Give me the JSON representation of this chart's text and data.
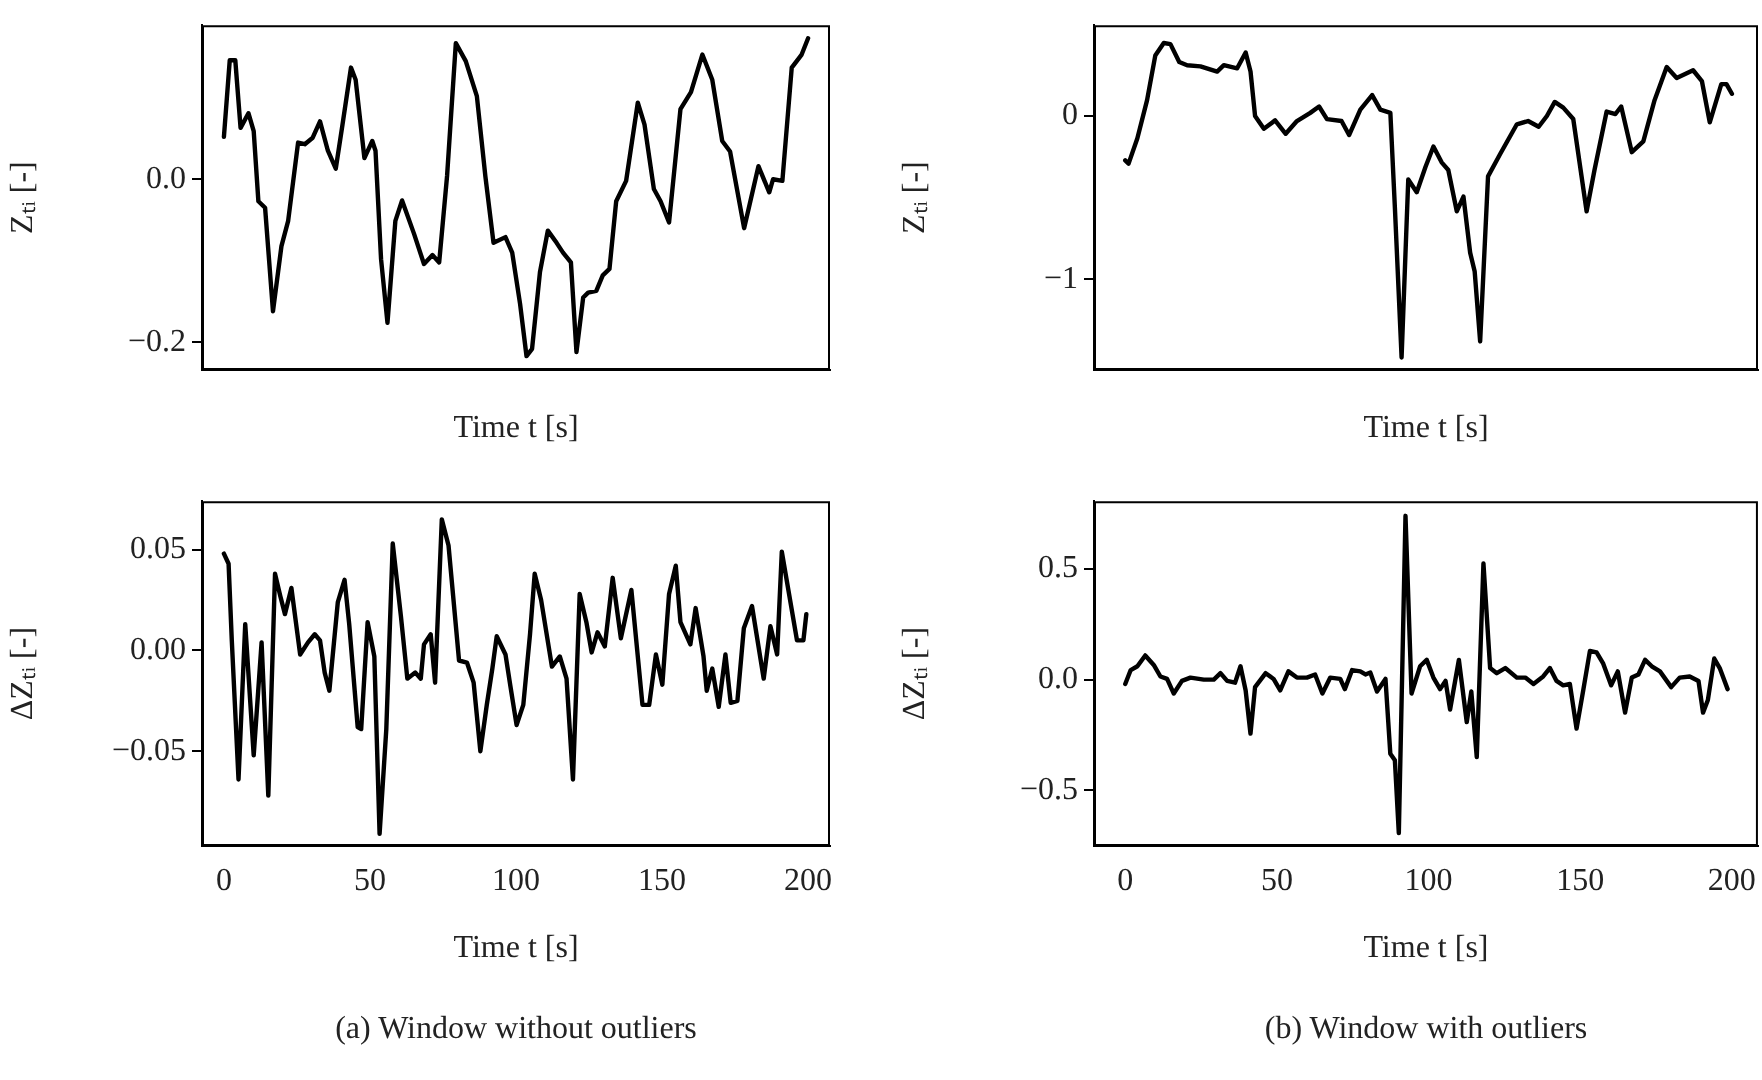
{
  "chart_data": [
    {
      "type": "line",
      "ylabel": "Zₜᵢ [-]",
      "xlabel": "Time t [s]",
      "tick_labels": "y",
      "grid": false,
      "legend": false,
      "marker": "none",
      "line_style": "solid",
      "xlim": [
        -7.5,
        207.5
      ],
      "xticks": [
        0,
        50,
        100,
        150,
        200
      ],
      "ylim": [
        -0.234,
        0.189
      ],
      "yticks": [
        {
          "value": -0.2,
          "label": "−0.2"
        },
        {
          "value": 0,
          "label": "0.0"
        }
      ],
      "series": [
        {
          "color": "#000000",
          "x": [
            0,
            2,
            3.9,
            5.7,
            8.4,
            10.2,
            11.8,
            14.1,
            16.8,
            19.7,
            22,
            25.4,
            27.7,
            30.4,
            32.9,
            35.6,
            38.3,
            40.6,
            43.5,
            45.1,
            48.1,
            50.8,
            51.9,
            53.8,
            56,
            58.7,
            61,
            65.1,
            68.5,
            71.4,
            73.7,
            76.4,
            79.4,
            82.8,
            86.6,
            89.5,
            92.3,
            96.4,
            98.7,
            101.4,
            103.6,
            105.5,
            108.2,
            110.9,
            113.9,
            116.1,
            118.8,
            120.7,
            123,
            124.7,
            127.5,
            129.7,
            132,
            134.3,
            137.7,
            141.7,
            144,
            147.2,
            149.5,
            152.4,
            156.3,
            159.9,
            163.8,
            167.2,
            170.6,
            173.3,
            178.1,
            183,
            186.7,
            188,
            191.2,
            194.4,
            197.8,
            200
          ],
          "values": [
            0.052,
            0.146,
            0.146,
            0.063,
            0.081,
            0.059,
            -0.027,
            -0.035,
            -0.162,
            -0.082,
            -0.051,
            0.045,
            0.043,
            0.051,
            0.071,
            0.035,
            0.013,
            0.067,
            0.137,
            0.122,
            0.026,
            0.047,
            0.035,
            -0.098,
            -0.176,
            -0.051,
            -0.026,
            -0.067,
            -0.104,
            -0.093,
            -0.102,
            0.004,
            0.167,
            0.145,
            0.102,
            0.004,
            -0.078,
            -0.071,
            -0.09,
            -0.153,
            -0.217,
            -0.208,
            -0.114,
            -0.063,
            -0.078,
            -0.09,
            -0.102,
            -0.212,
            -0.145,
            -0.139,
            -0.137,
            -0.118,
            -0.11,
            -0.027,
            -0.002,
            0.094,
            0.067,
            -0.012,
            -0.027,
            -0.053,
            0.086,
            0.107,
            0.153,
            0.122,
            0.047,
            0.034,
            -0.06,
            0.016,
            -0.016,
            0,
            -0.002,
            0.137,
            0.153,
            0.173
          ]
        }
      ]
    },
    {
      "type": "line",
      "ylabel": "Zₜᵢ [-]",
      "xlabel": "Time t [s]",
      "tick_labels": "y",
      "grid": false,
      "legend": false,
      "marker": "none",
      "line_style": "solid",
      "xlim": [
        -10.3,
        208.6
      ],
      "xticks": [
        0,
        50,
        100,
        150,
        200
      ],
      "ylim": [
        -1.556,
        0.556
      ],
      "yticks": [
        {
          "value": -1,
          "label": "−1"
        },
        0
      ],
      "series": [
        {
          "color": "#000000",
          "x": [
            0,
            1.1,
            4,
            7.2,
            9.9,
            12.7,
            14.9,
            17.8,
            20.4,
            24.8,
            30.3,
            32.5,
            36.9,
            39.7,
            41.3,
            42.8,
            45.7,
            49.4,
            52.9,
            56.6,
            61,
            63.9,
            66.5,
            71.3,
            73.8,
            77.5,
            81.4,
            84.1,
            87.4,
            88.9,
            91.1,
            93.3,
            96.1,
            99,
            101.6,
            104.3,
            106.5,
            109.3,
            111.5,
            113.7,
            115.2,
            117,
            119.6,
            123.6,
            129.1,
            132.8,
            136.3,
            139,
            141.6,
            144.4,
            147.7,
            152.1,
            154.7,
            158.7,
            161.6,
            163.5,
            167,
            170.8,
            174.5,
            178.5,
            181.8,
            187.2,
            190.1,
            192.7,
            196.5,
            198.2,
            200
          ],
          "values": [
            -0.272,
            -0.292,
            -0.136,
            0.097,
            0.37,
            0.447,
            0.44,
            0.331,
            0.311,
            0.304,
            0.272,
            0.311,
            0.292,
            0.389,
            0.272,
            0,
            -0.078,
            -0.027,
            -0.109,
            -0.031,
            0.019,
            0.058,
            -0.019,
            -0.031,
            -0.117,
            0.039,
            0.128,
            0.039,
            0.019,
            -0.564,
            -1.479,
            -0.389,
            -0.467,
            -0.311,
            -0.187,
            -0.284,
            -0.331,
            -0.584,
            -0.494,
            -0.837,
            -0.953,
            -1.381,
            -0.37,
            -0.233,
            -0.051,
            -0.031,
            -0.066,
            0,
            0.086,
            0.051,
            -0.019,
            -0.584,
            -0.331,
            0.027,
            0.012,
            0.058,
            -0.222,
            -0.156,
            0.097,
            0.3,
            0.233,
            0.28,
            0.214,
            -0.039,
            0.195,
            0.195,
            0.136
          ]
        }
      ]
    },
    {
      "type": "line",
      "ylabel": "ΔZₜᵢ [-]",
      "xlabel": "Time t [s]",
      "grid": false,
      "legend": false,
      "marker": "none",
      "line_style": "solid",
      "xlim": [
        -7.5,
        207.5
      ],
      "xticks": [
        0,
        50,
        100,
        150,
        200
      ],
      "ylim": [
        -0.097,
        0.074
      ],
      "yticks": [
        {
          "value": -0.05,
          "label": "−0.05"
        },
        {
          "value": 0,
          "label": "0.00"
        },
        0.05
      ],
      "annotations": [
        "(a) Window without outliers"
      ],
      "series": [
        {
          "color": "#000000",
          "x": [
            0,
            1.6,
            2.7,
            5,
            7.3,
            10.2,
            12.9,
            15.2,
            17.5,
            19.3,
            20.9,
            23.1,
            26.1,
            28.8,
            31.1,
            32.9,
            34.5,
            36.1,
            39,
            41.3,
            42.9,
            45.8,
            47,
            49.2,
            51.5,
            53.3,
            55.6,
            57.8,
            60.6,
            62.8,
            65.5,
            67.4,
            68.5,
            70.8,
            72.3,
            74.6,
            76.9,
            80.5,
            83.2,
            85.5,
            87.8,
            90,
            91.9,
            93.4,
            96.4,
            98,
            100.2,
            102.5,
            104.8,
            106.4,
            108.6,
            112.3,
            115,
            117.3,
            119.5,
            121.8,
            124.1,
            125.9,
            127.9,
            130.4,
            133.1,
            135.9,
            139.5,
            143.3,
            145.6,
            147.9,
            150.1,
            152.4,
            154.7,
            156.3,
            159.7,
            161.5,
            164.2,
            165.3,
            167.2,
            169.4,
            171.7,
            173.5,
            175.8,
            178,
            180.8,
            184.8,
            187.1,
            189.4,
            191,
            196.2,
            198.4,
            199.4
          ],
          "values": [
            0.048,
            0.043,
            0.005,
            -0.064,
            0.013,
            -0.052,
            0.004,
            -0.072,
            0.038,
            0.027,
            0.018,
            0.031,
            -0.002,
            0.004,
            0.008,
            0.005,
            -0.011,
            -0.02,
            0.024,
            0.035,
            0.013,
            -0.038,
            -0.039,
            0.014,
            -0.003,
            -0.091,
            -0.039,
            0.053,
            0.017,
            -0.014,
            -0.011,
            -0.014,
            0.003,
            0.008,
            -0.016,
            0.065,
            0.052,
            -0.005,
            -0.006,
            -0.016,
            -0.05,
            -0.027,
            -0.009,
            0.007,
            -0.002,
            -0.017,
            -0.037,
            -0.027,
            0.008,
            0.038,
            0.025,
            -0.008,
            -0.003,
            -0.014,
            -0.064,
            0.028,
            0.014,
            -0.001,
            0.009,
            0.002,
            0.036,
            0.006,
            0.03,
            -0.027,
            -0.027,
            -0.002,
            -0.017,
            0.028,
            0.042,
            0.014,
            0.003,
            0.021,
            -0.003,
            -0.02,
            -0.009,
            -0.028,
            -0.002,
            -0.026,
            -0.025,
            0.011,
            0.022,
            -0.014,
            0.012,
            -0.002,
            0.049,
            0.005,
            0.005,
            0.018
          ]
        }
      ]
    },
    {
      "type": "line",
      "ylabel": "ΔZₜᵢ [-]",
      "xlabel": "Time t [s]",
      "grid": false,
      "legend": false,
      "marker": "none",
      "line_style": "solid",
      "xlim": [
        -10.3,
        208.6
      ],
      "xticks": [
        0,
        50,
        100,
        150,
        200
      ],
      "ylim": [
        -0.751,
        0.805
      ],
      "yticks": [
        {
          "value": -0.5,
          "label": "−0.5"
        },
        {
          "value": 0,
          "label": "0.0"
        },
        0.5
      ],
      "annotations": [
        "(b) Window with outliers"
      ],
      "series": [
        {
          "color": "#000000",
          "x": [
            0,
            1.8,
            4,
            6.6,
            9.4,
            11.6,
            13.8,
            16,
            18.7,
            21.5,
            25.9,
            29.2,
            31.4,
            33.6,
            36.2,
            38,
            39.7,
            41.3,
            42.8,
            46.3,
            48.9,
            51.1,
            53.8,
            56.6,
            59.9,
            62.6,
            65,
            67.6,
            70.9,
            72.4,
            74.8,
            77.5,
            79.2,
            80.8,
            83,
            85.8,
            87.4,
            88.9,
            90.2,
            92.4,
            94.4,
            97.2,
            99.4,
            101.6,
            103.8,
            105.6,
            107.1,
            110,
            112.6,
            114.1,
            115.9,
            118.1,
            120.3,
            122.5,
            125.3,
            129.1,
            131.9,
            134.6,
            137.8,
            140,
            142.2,
            144.4,
            146.6,
            148.8,
            151,
            153.2,
            155.4,
            157.6,
            160.2,
            162.4,
            164.8,
            167,
            169.2,
            171.4,
            173.6,
            176.3,
            180,
            182.8,
            186.1,
            189,
            190.5,
            192.1,
            194.2,
            196,
            198.6
          ],
          "values": [
            -0.02,
            0.043,
            0.06,
            0.109,
            0.066,
            0.014,
            0.003,
            -0.063,
            -0.006,
            0.009,
            0,
            0,
            0.029,
            -0.006,
            -0.014,
            0.06,
            -0.049,
            -0.244,
            -0.034,
            0.029,
            0.003,
            -0.049,
            0.037,
            0.009,
            0.009,
            0.023,
            -0.063,
            0.009,
            0.003,
            -0.043,
            0.043,
            0.037,
            0.023,
            0.032,
            -0.054,
            0.003,
            -0.335,
            -0.364,
            -0.693,
            0.739,
            -0.063,
            0.06,
            0.089,
            0.009,
            -0.043,
            -0.006,
            -0.135,
            0.089,
            -0.192,
            -0.054,
            -0.35,
            0.524,
            0.052,
            0.029,
            0.052,
            0.009,
            0.009,
            -0.02,
            0.014,
            0.052,
            -0.006,
            -0.026,
            -0.02,
            -0.221,
            -0.049,
            0.129,
            0.123,
            0.072,
            -0.026,
            0.037,
            -0.149,
            0.009,
            0.023,
            0.089,
            0.06,
            0.037,
            -0.034,
            0.009,
            0.014,
            -0.006,
            -0.149,
            -0.092,
            0.095,
            0.052,
            -0.043
          ]
        }
      ]
    }
  ]
}
